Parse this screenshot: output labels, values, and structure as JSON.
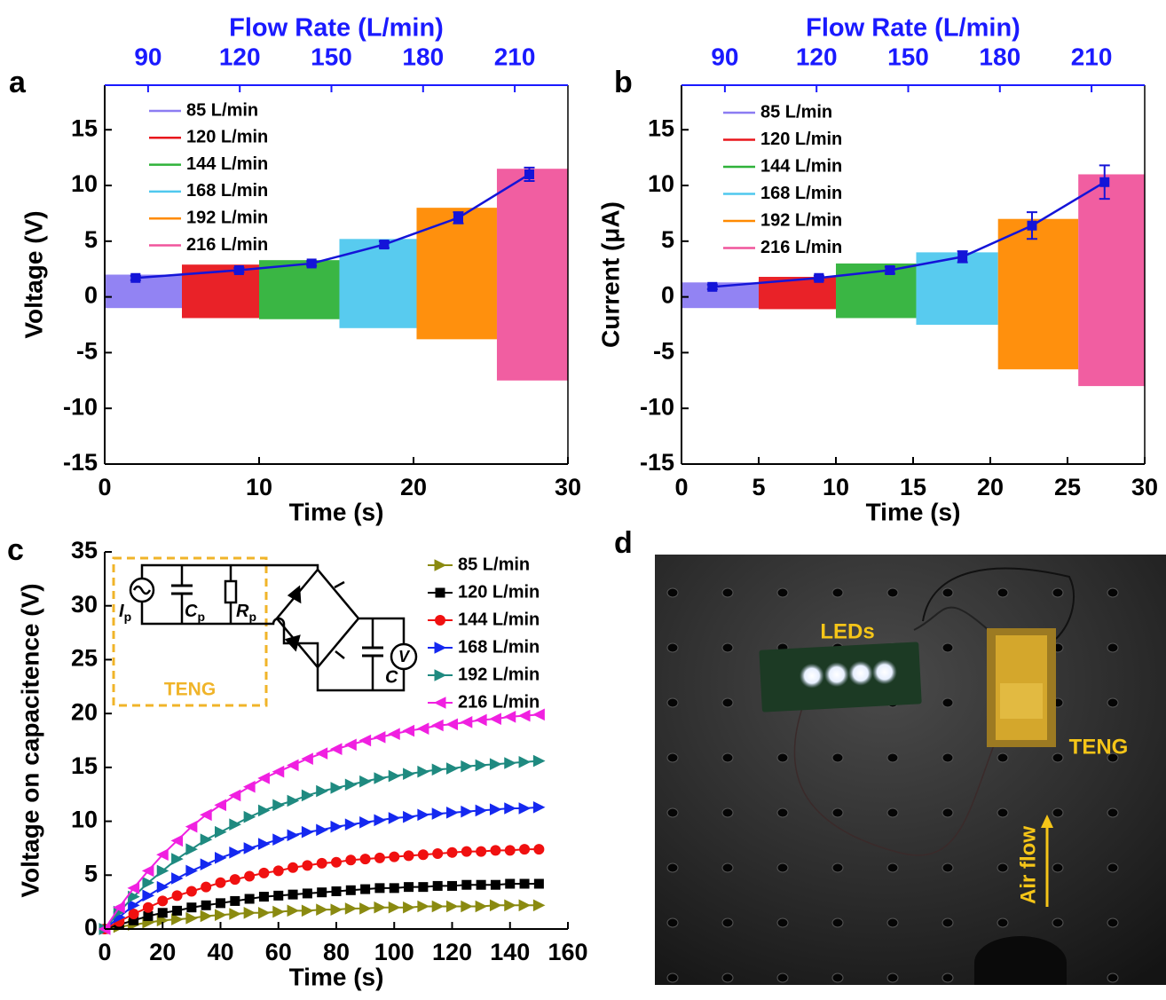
{
  "chart_data": [
    {
      "panel": "a",
      "type": "signal",
      "x2label": "Flow Rate (L/min)",
      "xlabel": "Time (s)",
      "ylabel": "Voltage (V)",
      "xlim": [
        0,
        30
      ],
      "xticks": [
        0,
        10,
        20,
        30
      ],
      "ylim": [
        -15,
        19
      ],
      "yticks": [
        -15,
        -10,
        -5,
        0,
        5,
        10,
        15
      ],
      "x2lim": [
        75.8,
        227.4
      ],
      "x2ticks": [
        90,
        120,
        150,
        180,
        210
      ],
      "x2color": "#1a1aff",
      "series": [
        {
          "name": "85 L/min",
          "color": "#8c7cf2",
          "x": [
            0,
            5
          ],
          "values": [
            2.0,
            -1.0
          ]
        },
        {
          "name": "120 L/min",
          "color": "#e8161c",
          "x": [
            5,
            10
          ],
          "values": [
            2.9,
            -1.9
          ]
        },
        {
          "name": "144 L/min",
          "color": "#2fb23a",
          "x": [
            10,
            15.2
          ],
          "values": [
            3.3,
            -2.0
          ]
        },
        {
          "name": "168 L/min",
          "color": "#4fc8ee",
          "x": [
            15.2,
            20.2
          ],
          "values": [
            5.2,
            -2.8
          ]
        },
        {
          "name": "192 L/min",
          "color": "#ff8a00",
          "x": [
            20.2,
            25.4
          ],
          "values": [
            8.0,
            -3.8
          ]
        },
        {
          "name": "216 L/min",
          "color": "#f0559c",
          "x": [
            25.4,
            30
          ],
          "values": [
            11.5,
            -7.5
          ]
        }
      ],
      "mean": {
        "color": "#1414d8",
        "x": [
          2,
          8.7,
          13.4,
          18.1,
          22.9,
          27.5
        ],
        "values": [
          1.7,
          2.4,
          3.0,
          4.7,
          7.1,
          11.0
        ],
        "errors": [
          0.2,
          0.2,
          0.2,
          0.3,
          0.5,
          0.6
        ]
      }
    },
    {
      "panel": "b",
      "type": "signal",
      "x2label": "Flow Rate (L/min)",
      "xlabel": "Time (s)",
      "ylabel": "Current (μA)",
      "xlim": [
        0,
        30
      ],
      "xticks": [
        0,
        5,
        10,
        15,
        20,
        25,
        30
      ],
      "ylim": [
        -15,
        19
      ],
      "yticks": [
        -15,
        -10,
        -5,
        0,
        5,
        10,
        15
      ],
      "x2lim": [
        75.8,
        227.4
      ],
      "x2ticks": [
        90,
        120,
        150,
        180,
        210
      ],
      "x2color": "#1a1aff",
      "series": [
        {
          "name": "85 L/min",
          "color": "#8c7cf2",
          "x": [
            0,
            5
          ],
          "values": [
            1.3,
            -1.0
          ]
        },
        {
          "name": "120 L/min",
          "color": "#e8161c",
          "x": [
            5,
            10
          ],
          "values": [
            1.8,
            -1.1
          ]
        },
        {
          "name": "144 L/min",
          "color": "#2fb23a",
          "x": [
            10,
            15.2
          ],
          "values": [
            3.0,
            -1.9
          ]
        },
        {
          "name": "168 L/min",
          "color": "#4fc8ee",
          "x": [
            15.2,
            20.5
          ],
          "values": [
            4.0,
            -2.5
          ]
        },
        {
          "name": "192 L/min",
          "color": "#ff8a00",
          "x": [
            20.5,
            25.7
          ],
          "values": [
            7.0,
            -6.5
          ]
        },
        {
          "name": "216 L/min",
          "color": "#f0559c",
          "x": [
            25.7,
            30
          ],
          "values": [
            11.0,
            -8.0
          ]
        }
      ],
      "mean": {
        "color": "#1414d8",
        "x": [
          2,
          8.9,
          13.5,
          18.2,
          22.7,
          27.4
        ],
        "values": [
          0.9,
          1.7,
          2.4,
          3.6,
          6.4,
          10.3
        ],
        "errors": [
          0.2,
          0.2,
          0.3,
          0.5,
          1.2,
          1.5
        ]
      }
    },
    {
      "panel": "c",
      "type": "line",
      "xlabel": "Time (s)",
      "ylabel": "Voltage on capacitence (V)",
      "xlim": [
        0,
        160
      ],
      "xticks": [
        0,
        20,
        40,
        60,
        80,
        100,
        120,
        140,
        160
      ],
      "ylim": [
        0,
        35
      ],
      "yticks": [
        0,
        5,
        10,
        15,
        20,
        25,
        30,
        35
      ],
      "x": [
        0,
        5,
        10,
        15,
        20,
        25,
        30,
        35,
        40,
        45,
        50,
        55,
        60,
        65,
        70,
        75,
        80,
        85,
        90,
        95,
        100,
        105,
        110,
        115,
        120,
        125,
        130,
        135,
        140,
        145,
        150
      ],
      "series": [
        {
          "name": "85 L/min",
          "color": "#8a8a10",
          "marker": "triangle-right",
          "values": [
            0,
            0.2,
            0.4,
            0.6,
            0.8,
            0.9,
            1.0,
            1.2,
            1.3,
            1.4,
            1.5,
            1.5,
            1.6,
            1.7,
            1.7,
            1.8,
            1.8,
            1.9,
            1.9,
            2.0,
            2.0,
            2.0,
            2.1,
            2.1,
            2.1,
            2.1,
            2.1,
            2.2,
            2.2,
            2.2,
            2.2
          ]
        },
        {
          "name": "120 L/min",
          "color": "#000000",
          "marker": "square",
          "values": [
            0,
            0.4,
            0.8,
            1.2,
            1.5,
            1.7,
            2.0,
            2.2,
            2.4,
            2.6,
            2.8,
            3.0,
            3.1,
            3.2,
            3.3,
            3.4,
            3.5,
            3.6,
            3.7,
            3.8,
            3.8,
            3.9,
            3.9,
            4.0,
            4.0,
            4.1,
            4.1,
            4.1,
            4.2,
            4.2,
            4.2
          ]
        },
        {
          "name": "144 L/min",
          "color": "#f01010",
          "marker": "circle",
          "values": [
            0,
            0.7,
            1.4,
            2.0,
            2.6,
            3.1,
            3.5,
            3.9,
            4.3,
            4.6,
            4.9,
            5.2,
            5.4,
            5.7,
            5.9,
            6.1,
            6.2,
            6.4,
            6.5,
            6.6,
            6.7,
            6.8,
            6.9,
            7.0,
            7.1,
            7.2,
            7.2,
            7.3,
            7.3,
            7.4,
            7.4
          ]
        },
        {
          "name": "168 L/min",
          "color": "#1428f0",
          "marker": "triangle-right",
          "values": [
            0,
            1.1,
            2.2,
            3.1,
            3.9,
            4.7,
            5.4,
            6.0,
            6.6,
            7.1,
            7.5,
            7.9,
            8.3,
            8.7,
            9.0,
            9.2,
            9.5,
            9.7,
            9.9,
            10.1,
            10.3,
            10.4,
            10.6,
            10.7,
            10.8,
            10.9,
            11.0,
            11.1,
            11.2,
            11.2,
            11.3
          ]
        },
        {
          "name": "192 L/min",
          "color": "#1f8a80",
          "marker": "triangle-right",
          "values": [
            0,
            1.6,
            3.0,
            4.3,
            5.4,
            6.5,
            7.4,
            8.3,
            9.0,
            9.7,
            10.4,
            11.0,
            11.5,
            11.9,
            12.4,
            12.8,
            13.1,
            13.4,
            13.7,
            14.0,
            14.2,
            14.4,
            14.6,
            14.8,
            14.9,
            15.1,
            15.2,
            15.3,
            15.4,
            15.5,
            15.6
          ]
        },
        {
          "name": "216 L/min",
          "color": "#f020e0",
          "marker": "triangle-left",
          "values": [
            0,
            2.0,
            3.8,
            5.4,
            6.9,
            8.2,
            9.5,
            10.6,
            11.5,
            12.4,
            13.2,
            14.0,
            14.6,
            15.2,
            15.8,
            16.3,
            16.7,
            17.1,
            17.5,
            17.8,
            18.1,
            18.4,
            18.6,
            18.9,
            19.0,
            19.2,
            19.4,
            19.5,
            19.7,
            19.8,
            19.9
          ]
        }
      ],
      "inset": {
        "source": "I",
        "source_sub": "p",
        "cap": "C",
        "cap_sub": "p",
        "res": "R",
        "res_sub": "p",
        "box": "TENG",
        "load_cap": "C",
        "meter": "V"
      }
    },
    {
      "panel": "d",
      "type": "image",
      "labels": [
        "LEDs",
        "TENG",
        "Air flow"
      ]
    }
  ]
}
